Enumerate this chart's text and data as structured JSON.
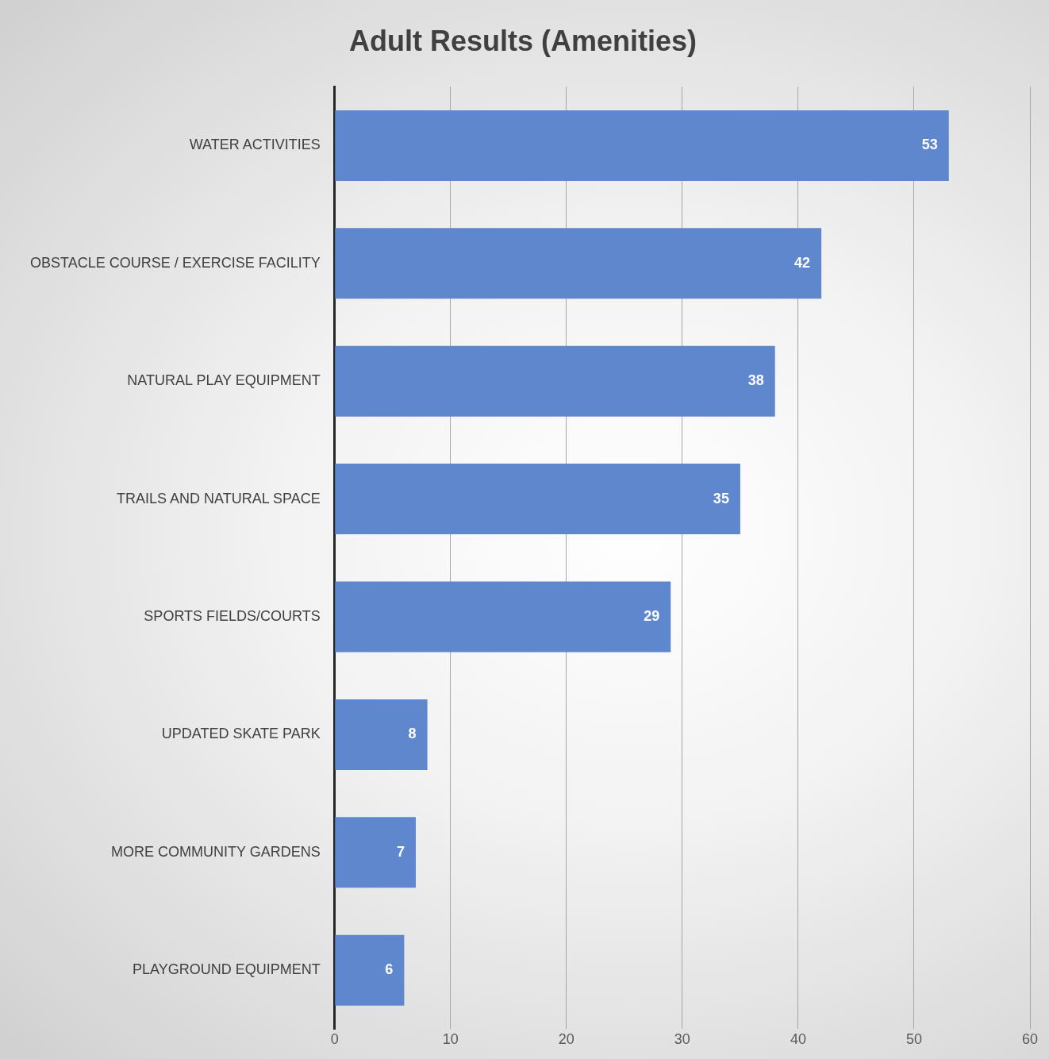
{
  "chart_data": {
    "type": "bar",
    "orientation": "horizontal",
    "title": "Adult Results (Amenities)",
    "categories": [
      "WATER ACTIVITIES",
      "OBSTACLE COURSE / EXERCISE FACILITY",
      "NATURAL PLAY EQUIPMENT",
      "TRAILS AND NATURAL SPACE",
      "SPORTS FIELDS/COURTS",
      "UPDATED SKATE PARK",
      "MORE COMMUNITY GARDENS",
      "PLAYGROUND EQUIPMENT"
    ],
    "values": [
      53,
      42,
      38,
      35,
      29,
      8,
      7,
      6
    ],
    "color": "#5f87cd",
    "xlim": [
      0,
      60
    ],
    "xticks": [
      0,
      10,
      20,
      30,
      40,
      50,
      60
    ],
    "grid": "x",
    "legend": false,
    "data_labels": true
  }
}
